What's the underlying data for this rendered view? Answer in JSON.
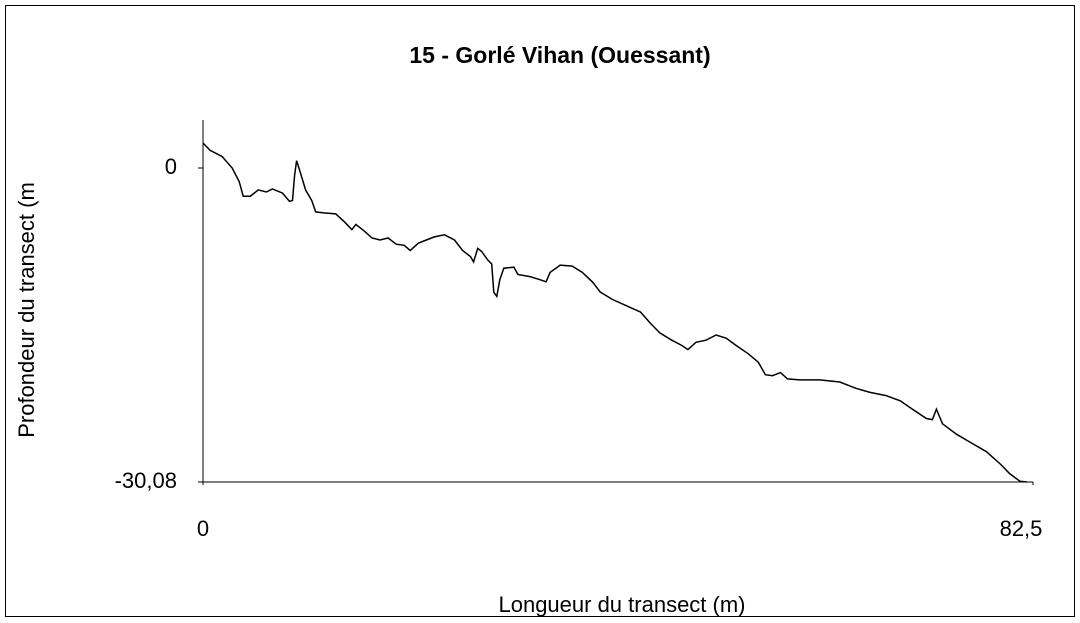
{
  "chart_data": {
    "type": "line",
    "title": "15 - Gorlé Vihan (Ouessant)",
    "x_label": "Longueur du transect (m)",
    "y_label": "Profondeur du transect (m",
    "color": "#000000",
    "x": [
      0,
      0.7,
      1.9,
      2.9,
      3.6,
      4.0,
      4.7,
      5.5,
      6.3,
      6.9,
      7.9,
      8.6,
      8.9,
      9.1,
      9.3,
      9.6,
      10.2,
      10.8,
      11.2,
      12.0,
      13.2,
      14.1,
      14.8,
      15.2,
      16.1,
      16.8,
      17.6,
      18.4,
      19.2,
      20.0,
      20.6,
      21.4,
      22.2,
      23.0,
      24.0,
      25.0,
      25.8,
      26.6,
      26.9,
      27.3,
      27.7,
      28.3,
      28.7,
      28.9,
      29.2,
      29.5,
      29.9,
      30.9,
      31.3,
      32.5,
      33.5,
      34.1,
      34.5,
      35.5,
      36.7,
      37.7,
      38.7,
      39.5,
      40.7,
      42.1,
      43.5,
      44.4,
      45.4,
      46.6,
      47.6,
      48.2,
      49.0,
      50.0,
      51.0,
      52.0,
      53.0,
      54.2,
      55.2,
      55.9,
      56.6,
      57.4,
      58.1,
      59.3,
      61.3,
      63.3,
      64.9,
      66.3,
      67.9,
      69.3,
      70.5,
      71.9,
      72.5,
      72.9,
      73.5,
      74.9,
      76.3,
      77.9,
      79.3,
      80.2,
      81.2,
      81.9
    ],
    "values": [
      2.4,
      1.7,
      1.1,
      0,
      -1.3,
      -2.7,
      -2.7,
      -2.1,
      -2.3,
      -2.0,
      -2.4,
      -3.2,
      -3.1,
      -0.7,
      0.7,
      -0.2,
      -2.1,
      -3.1,
      -4.2,
      -4.3,
      -4.4,
      -5.2,
      -5.9,
      -5.4,
      -6.1,
      -6.7,
      -6.9,
      -6.7,
      -7.3,
      -7.4,
      -7.9,
      -7.2,
      -6.9,
      -6.6,
      -6.4,
      -6.9,
      -7.9,
      -8.5,
      -9.0,
      -7.7,
      -8.0,
      -8.8,
      -9.2,
      -11.9,
      -12.3,
      -10.7,
      -9.6,
      -9.5,
      -10.2,
      -10.4,
      -10.7,
      -10.9,
      -10.0,
      -9.3,
      -9.4,
      -10.0,
      -10.9,
      -11.9,
      -12.6,
      -13.2,
      -13.8,
      -14.8,
      -15.8,
      -16.5,
      -17.0,
      -17.4,
      -16.7,
      -16.5,
      -16.0,
      -16.3,
      -17.0,
      -17.8,
      -18.6,
      -19.8,
      -19.9,
      -19.6,
      -20.2,
      -20.3,
      -20.3,
      -20.5,
      -21.1,
      -21.5,
      -21.8,
      -22.3,
      -23.1,
      -24.0,
      -24.1,
      -23.1,
      -24.5,
      -25.5,
      -26.3,
      -27.2,
      -28.4,
      -29.3,
      -30.0,
      -30.08
    ],
    "xlim": [
      0,
      82.5
    ],
    "xticks": [
      0,
      {
        "value": 82.5,
        "label": "82,5"
      }
    ],
    "ylim": [
      -30.08,
      4.6
    ],
    "yticks": [
      0,
      {
        "value": -30.08,
        "label": "-30,08"
      }
    ],
    "grid": false
  }
}
